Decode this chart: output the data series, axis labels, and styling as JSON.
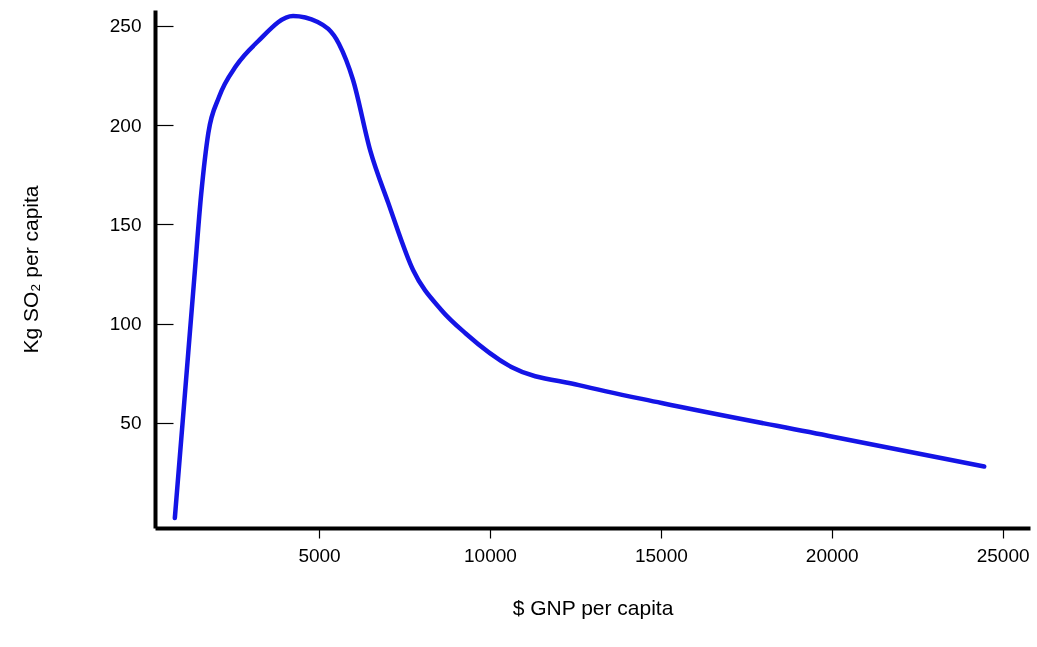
{
  "chart_data": {
    "type": "line",
    "xlabel": "$ GNP per capita",
    "ylabel": "Kg SO₂ per capita",
    "xlim": [
      200,
      25800
    ],
    "ylim": [
      -3,
      258
    ],
    "xticks": [
      5000,
      10000,
      15000,
      20000,
      25000
    ],
    "yticks": [
      50,
      100,
      150,
      200,
      250
    ],
    "grid": false,
    "marker": "none",
    "line_style": "solid",
    "series": [
      {
        "color": "#1414e6",
        "x": [
          780,
          1040,
          1350,
          1550,
          1760,
          2070,
          2580,
          3200,
          4240,
          4960,
          5580,
          5990,
          6500,
          7020,
          7750,
          8570,
          9290,
          10640,
          12600,
          15020,
          20030,
          24460
        ],
        "values": [
          2,
          57,
          123,
          165,
          196,
          214,
          230,
          242,
          255,
          252,
          241,
          223,
          187,
          161,
          127,
          107,
          95,
          78,
          69,
          60,
          43,
          28
        ]
      }
    ]
  }
}
